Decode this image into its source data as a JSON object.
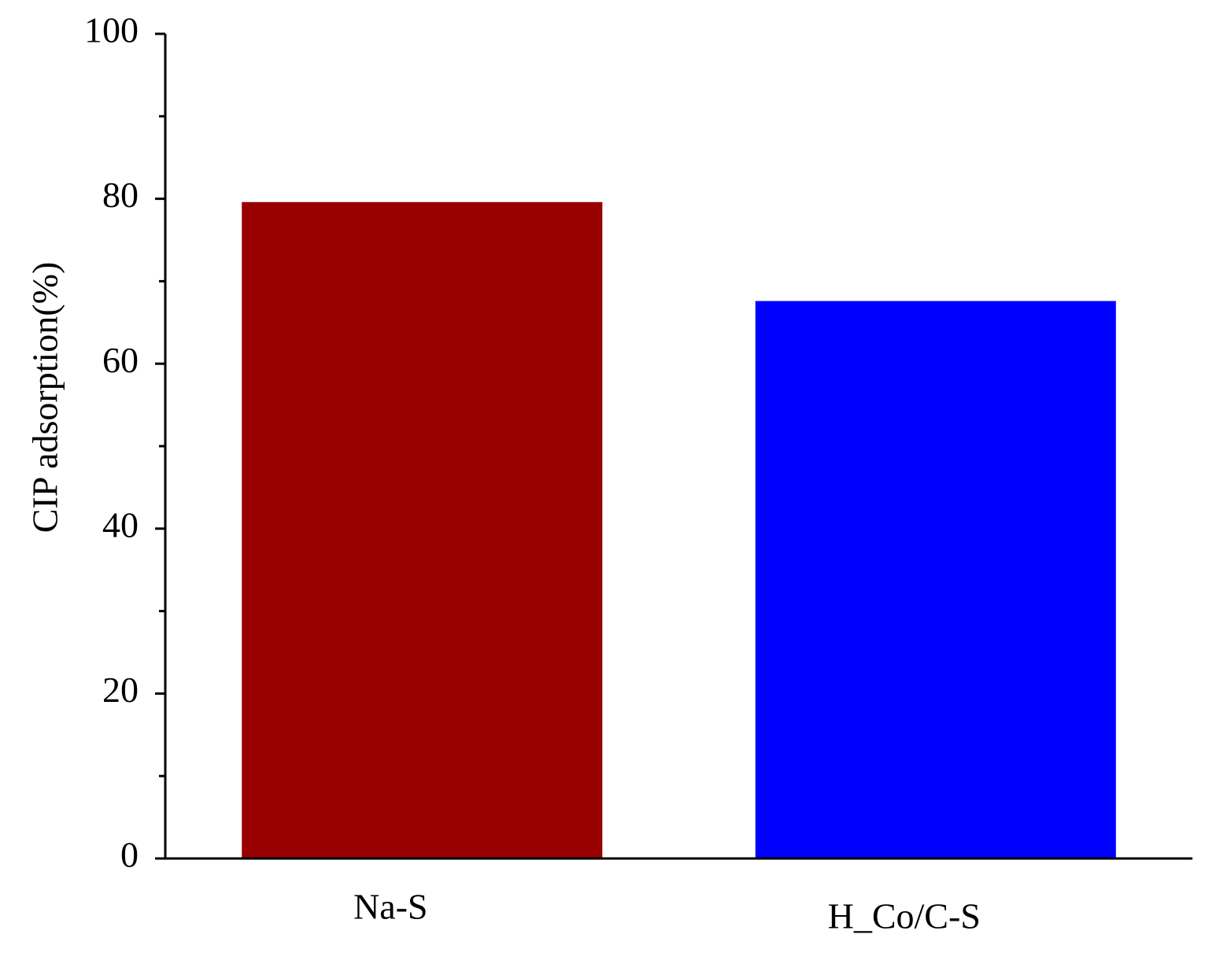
{
  "chart_data": {
    "type": "bar",
    "y_label": "CIP adsorption(%)",
    "categories": [
      "Na-S",
      "H_Co/C-S"
    ],
    "values": [
      79.6,
      67.6
    ],
    "colors": [
      "#990000",
      "#0000ff"
    ],
    "ylim": [
      0,
      100
    ],
    "yticks": [
      0,
      20,
      40,
      60,
      80,
      100
    ],
    "yminorticks": [
      10,
      30,
      50,
      70,
      90
    ],
    "grid": false
  }
}
